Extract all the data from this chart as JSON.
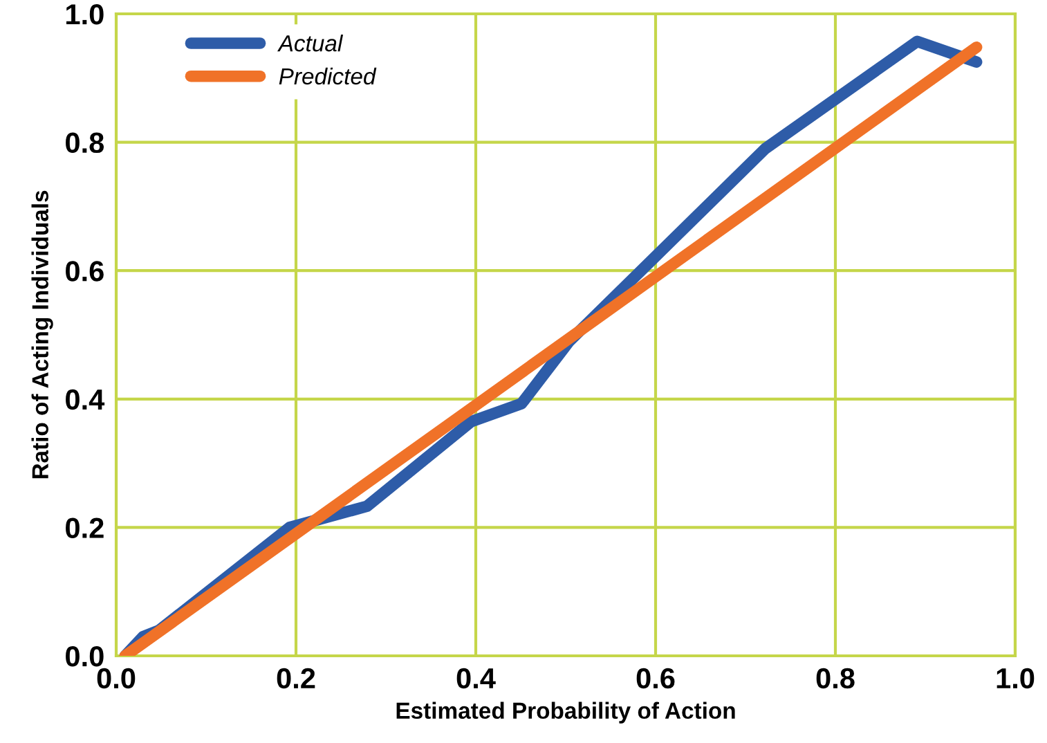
{
  "chart_data": {
    "type": "line",
    "xlabel": "Estimated Probability of Action",
    "ylabel": "Ratio of Acting Individuals",
    "xlim": [
      0,
      1
    ],
    "ylim": [
      0,
      1
    ],
    "xticks": [
      {
        "value": 0,
        "label": "0.0"
      },
      0.2,
      0.4,
      0.6,
      0.8,
      {
        "value": 1,
        "label": "1.0"
      }
    ],
    "yticks": [
      {
        "value": 0,
        "label": "0.0"
      },
      0.2,
      0.4,
      0.6,
      0.8,
      {
        "value": 1,
        "label": "1.0"
      }
    ],
    "grid": true,
    "legend": "top left",
    "marker": "none",
    "line_style": "solid",
    "series": [
      {
        "name": "Actual",
        "color": "#2e5ca8",
        "x": [
          0.01,
          0.03,
          0.048,
          0.193,
          0.279,
          0.395,
          0.451,
          0.504,
          0.722,
          0.891,
          0.957
        ],
        "values": [
          0.0,
          0.03,
          0.04,
          0.2,
          0.233,
          0.365,
          0.393,
          0.49,
          0.79,
          0.957,
          0.925
        ]
      },
      {
        "name": "Predicted",
        "color": "#f07228",
        "x": [
          0.01,
          0.957
        ],
        "values": [
          0.0,
          0.948
        ]
      }
    ]
  }
}
